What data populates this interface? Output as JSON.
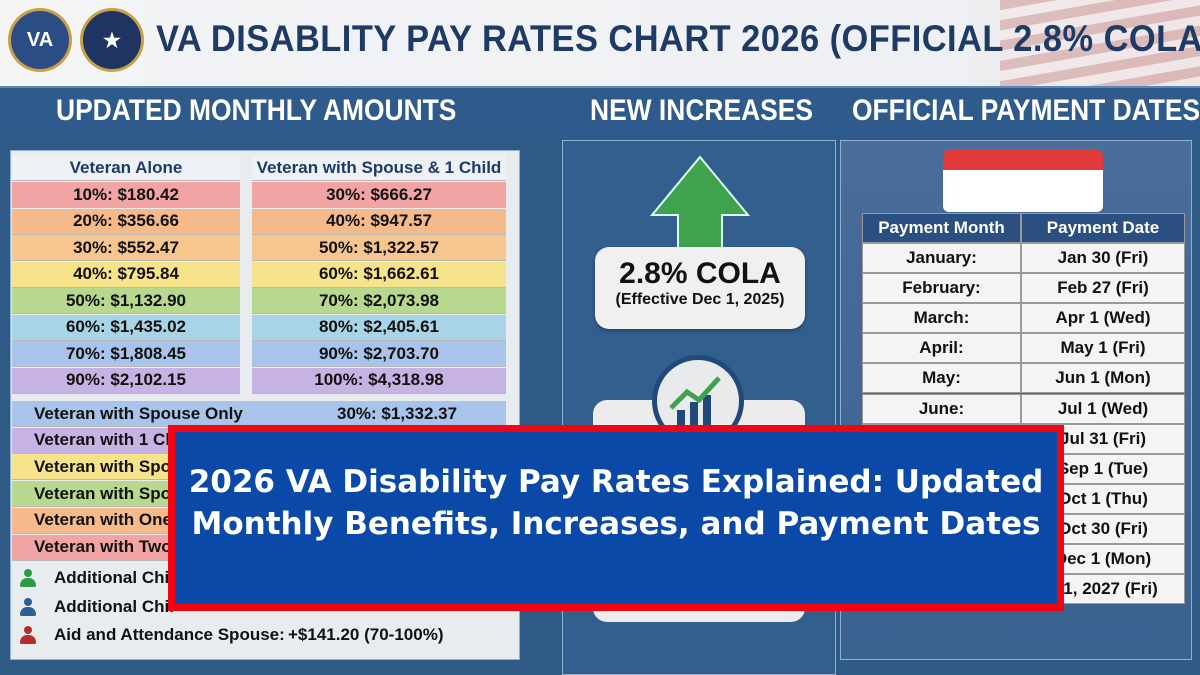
{
  "header": {
    "title": "VA DISABLITY PAY RATES CHART 2026 (OFFICIAL 2.8% COLA)",
    "seal_text": "VA"
  },
  "sections": {
    "left": "UPDATED MONTHLY AMOUNTS",
    "middle": "NEW INCREASES",
    "right": "OFFICIAL PAYMENT DATES"
  },
  "rates": {
    "col1_header": "Veteran Alone",
    "col2_header": "Veteran with Spouse & 1 Child",
    "col1": [
      "10%: $180.42",
      "20%: $356.66",
      "30%: $552.47",
      "40%: $795.84",
      "50%: $1,132.90",
      "60%: $1,435.02",
      "70%: $1,808.45",
      "90%: $2,102.15"
    ],
    "col2": [
      "30%: $666.27",
      "40%: $947.57",
      "50%: $1,322.57",
      "60%: $1,662.61",
      "70%: $2,073.98",
      "80%: $2,405.61",
      "90%: $2,703.70",
      "100%: $4,318.98"
    ],
    "colors": [
      "#f2a4a4",
      "#f5b98a",
      "#f7c68e",
      "#f6e38a",
      "#b8d890",
      "#a9d4e6",
      "#a8c4ea",
      "#c7b3e3"
    ]
  },
  "dependents": [
    {
      "label": "Veteran with Spouse Only",
      "value": "30%: $1,332.37",
      "color": "#a8c4ea"
    },
    {
      "label": "Veteran with 1 Chi",
      "value": "",
      "color": "#c7b3e3"
    },
    {
      "label": "Veteran with Spou",
      "value": "",
      "color": "#f6e38a"
    },
    {
      "label": "Veteran with Spou",
      "value": "",
      "color": "#b8d890"
    },
    {
      "label": "Veteran with One",
      "value": "",
      "color": "#f5b98a"
    },
    {
      "label": "Veteran with Two",
      "value": "",
      "color": "#f2a4a4"
    }
  ],
  "additions": [
    {
      "label": "Additional Chil",
      "value": "",
      "color": "#2e9a47"
    },
    {
      "label": "Additional Chil",
      "value": "",
      "color": "#2c5f93"
    },
    {
      "label": "Aid and Attendance Spouse:",
      "value": "+$141.20 (70-100%)",
      "color": "#b72d2d"
    }
  ],
  "cola": {
    "title": "2.8% COLA",
    "subtitle": "(Effective Dec 1, 2025)"
  },
  "payments": {
    "headers": [
      "Payment Month",
      "Payment Date"
    ],
    "rows": [
      [
        "January:",
        "Jan 30 (Fri)"
      ],
      [
        "February:",
        "Feb 27 (Fri)"
      ],
      [
        "March:",
        "Apr 1 (Wed)"
      ],
      [
        "April:",
        "May 1 (Fri)"
      ],
      [
        "May:",
        "Jun 1 (Mon)"
      ],
      [
        "June:",
        "Jul 1 (Wed)"
      ],
      [
        "",
        "Jul 31 (Fri)"
      ],
      [
        "",
        "Sep 1 (Tue)"
      ],
      [
        "",
        "Oct 1 (Thu)"
      ],
      [
        "",
        "Oct 30 (Fri)"
      ],
      [
        "",
        "Dec 1 (Mon)"
      ],
      [
        "",
        "n 1, 2027 (Fri)"
      ]
    ]
  },
  "overlay": {
    "line1": "2026 VA Disability Pay Rates Explained: Updated",
    "line2": "Monthly Benefits, Increases, and Payment Dates"
  }
}
